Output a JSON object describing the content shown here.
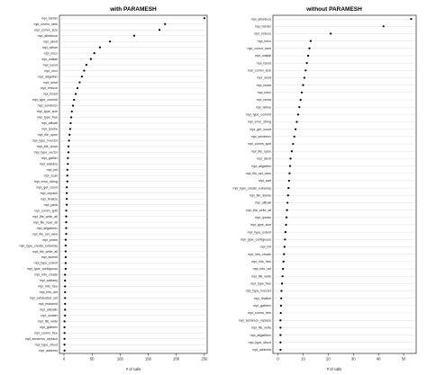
{
  "chart_data": [
    {
      "type": "scatter",
      "title": "with PARAMESH",
      "xlabel": "# of calls",
      "xlim": [
        -8,
        255
      ],
      "xticks": [
        0,
        50,
        100,
        150,
        200,
        250
      ],
      "grid": "horizontal",
      "categories": [
        "mpi_barrier",
        "mpi_comm_rank",
        "mpi_comm_size",
        "mpi_allreduce",
        "mpi_abort",
        "mpi_wtime",
        "mpi_irecv",
        "mpi_waitall",
        "mpi_isend",
        "mpi_recv",
        "mpi_allgather",
        "mpi_send",
        "mpi_reduce",
        "mpi_bcast",
        "mpi_type_commit",
        "mpi_sendrecv",
        "mpi_type_size",
        "mpi_type_free",
        "mpi_alltoall",
        "mpi_iprobe",
        "mpi_file_open",
        "mpi_type_hvector",
        "mpi_file_close",
        "mpi_type_vector",
        "mpi_gather",
        "mpi_waitany",
        "mpi_init",
        "mpi_scan",
        "mpi_error_string",
        "mpi_get_count",
        "mpi_unpack",
        "mpi_finalize",
        "mpi_pack",
        "mpi_comm_split",
        "mpi_file_write_all",
        "mpi_file_read_all",
        "mpi_allgatherv",
        "mpi_file_set_view",
        "mpi_probe",
        "mpi_type_create_subarray",
        "mpi_file_write_all",
        "mpi_issend",
        "mpi_type_extent",
        "mpi_type_contiguous",
        "mpi_info_create",
        "mpi_waitany",
        "mpi_info_free",
        "mpi_info_set",
        "mpi_exhausted_set",
        "mpi_testsend",
        "mpi_alltoallv",
        "mpi_scatter",
        "mpi_file_write",
        "mpi_gatherv",
        "mpi_comm_free",
        "mpi_sendrecv_replace",
        "mpi_type_struct",
        "mpi_address"
      ],
      "values": [
        250,
        180,
        170,
        125,
        82,
        64,
        54,
        48,
        40,
        36,
        32,
        28,
        24,
        21,
        18,
        16,
        14,
        13,
        12,
        11,
        10,
        9,
        8,
        8,
        7,
        7,
        6,
        6,
        6,
        5,
        5,
        5,
        5,
        4,
        4,
        4,
        4,
        4,
        3,
        3,
        3,
        3,
        3,
        3,
        2,
        2,
        2,
        2,
        2,
        2,
        2,
        2,
        1,
        1,
        1,
        1,
        1,
        1
      ]
    },
    {
      "type": "scatter",
      "title": "without PARAMESH",
      "xlabel": "# of calls",
      "xlim": [
        -2,
        55
      ],
      "xticks": [
        0,
        10,
        20,
        30,
        40,
        50
      ],
      "grid": "horizontal",
      "categories": [
        "mpi_allreduce",
        "mpi_barrier",
        "mpi_reduce",
        "mpi_irecv",
        "mpi_comm_rank",
        "mpi_waitall",
        "mpi_isend",
        "mpi_comm_size",
        "mpi_send",
        "mpi_bcast",
        "mpi_irecv",
        "mpi_isend",
        "mpi_wtime",
        "mpi_type_commit",
        "mpi_error_string",
        "mpi_get_count",
        "mpi_sendrecv",
        "mpi_comm_split",
        "mpi_file_open",
        "mpi_abort",
        "mpi_allgather",
        "mpi_file_set_view",
        "mpi_wait",
        "mpi_type_create_subarray",
        "mpi_file_delete",
        "mpi_alltoall",
        "mpi_file_write_all",
        "mpi_iprobe",
        "mpi_type_size",
        "mpi_type_extent",
        "mpi_type_contiguous",
        "mpi_init",
        "mpi_info_create",
        "mpi_info_free",
        "mpi_info_set",
        "mpi_file_write",
        "mpi_type_free",
        "mpi_type_hvector",
        "mpi_finalize",
        "mpi_gatherv",
        "mpi_comm_free",
        "mpi_sendrecv_replace",
        "mpi_file_write",
        "mpi_allgatherv",
        "mpi_type_struct",
        "mpi_address"
      ],
      "values": [
        53,
        42,
        21,
        13,
        12.5,
        12,
        11.5,
        11,
        10.5,
        10,
        9.5,
        9,
        8.5,
        8,
        7.5,
        7,
        6.5,
        6,
        5.5,
        5,
        4.8,
        4.6,
        4.4,
        4.2,
        4,
        3.8,
        3.6,
        3.4,
        3.2,
        3,
        2.8,
        2.6,
        2.4,
        2.2,
        2,
        1.8,
        1.6,
        1.4,
        1.3,
        1.2,
        1.1,
        1,
        1,
        1,
        1,
        1
      ]
    }
  ]
}
